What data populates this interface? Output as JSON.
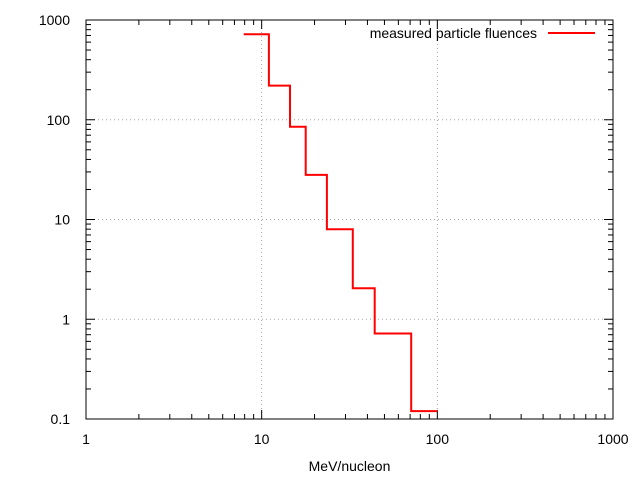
{
  "chart_data": {
    "type": "line",
    "step": true,
    "x_scale": "log",
    "y_scale": "log",
    "xlim": [
      1,
      1000
    ],
    "ylim": [
      0.1,
      1000
    ],
    "xlabel": "MeV/nucleon",
    "ylabel": "",
    "grid": true,
    "legend_position": "top-right",
    "x_ticks": [
      {
        "value": 1,
        "label": "1"
      },
      {
        "value": 10,
        "label": "10"
      },
      {
        "value": 100,
        "label": "100"
      },
      {
        "value": 1000,
        "label": "1000"
      }
    ],
    "y_ticks": [
      {
        "value": 0.1,
        "label": "0.1"
      },
      {
        "value": 1,
        "label": "1"
      },
      {
        "value": 10,
        "label": "10"
      },
      {
        "value": 100,
        "label": "100"
      },
      {
        "value": 1000,
        "label": "1000"
      }
    ],
    "series": [
      {
        "name": "measured particle fluences",
        "color": "#ff0000",
        "edges": [
          7.9,
          11,
          14.5,
          17.8,
          23.5,
          33,
          44,
          71,
          100
        ],
        "values": [
          720,
          220,
          85,
          28,
          8,
          2.05,
          0.72,
          0.12
        ]
      }
    ]
  }
}
